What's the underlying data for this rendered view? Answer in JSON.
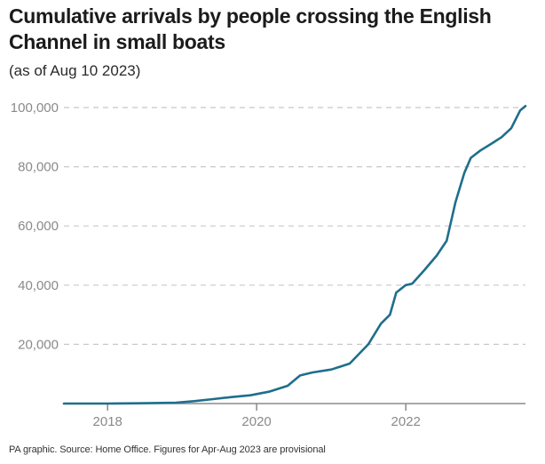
{
  "title": "Cumulative arrivals by people crossing the English Channel in small boats",
  "subtitle": "(as of Aug 10 2023)",
  "source": "PA graphic. Source: Home Office. Figures for Apr-Aug 2023 are provisional",
  "colors": {
    "line": "#1f6e8c",
    "grid": "#c8c8c8",
    "axis": "#8a8a8a"
  },
  "chart_data": {
    "type": "line",
    "title": "Cumulative arrivals by people crossing the English Channel in small boats",
    "subtitle": "(as of Aug 10 2023)",
    "xlabel": "",
    "ylabel": "",
    "ylim": [
      0,
      100000
    ],
    "xlim": [
      "2017-06-01",
      "2023-08-10"
    ],
    "grid": true,
    "grid_style": "dashed, horizontal",
    "x_ticks": [
      "2018",
      "2020",
      "2022"
    ],
    "y_ticks": [
      "20,000",
      "40,000",
      "60,000",
      "80,000",
      "100,000"
    ],
    "series": [
      {
        "points": [
          [
            "2017-06-01",
            0
          ],
          [
            "2018-01-01",
            0
          ],
          [
            "2018-06-01",
            100
          ],
          [
            "2018-12-01",
            300
          ],
          [
            "2019-03-01",
            800
          ],
          [
            "2019-06-01",
            1500
          ],
          [
            "2019-09-01",
            2200
          ],
          [
            "2019-12-01",
            2800
          ],
          [
            "2020-03-01",
            4000
          ],
          [
            "2020-06-01",
            6000
          ],
          [
            "2020-08-01",
            9500
          ],
          [
            "2020-10-01",
            10500
          ],
          [
            "2021-01-01",
            11500
          ],
          [
            "2021-04-01",
            13500
          ],
          [
            "2021-07-01",
            20000
          ],
          [
            "2021-09-01",
            27000
          ],
          [
            "2021-10-15",
            30000
          ],
          [
            "2021-11-15",
            37500
          ],
          [
            "2021-12-31",
            40000
          ],
          [
            "2022-02-01",
            40500
          ],
          [
            "2022-04-01",
            45000
          ],
          [
            "2022-06-01",
            50000
          ],
          [
            "2022-07-20",
            55000
          ],
          [
            "2022-09-01",
            68000
          ],
          [
            "2022-10-15",
            78000
          ],
          [
            "2022-11-15",
            83000
          ],
          [
            "2023-01-01",
            85500
          ],
          [
            "2023-03-01",
            88000
          ],
          [
            "2023-04-15",
            90000
          ],
          [
            "2023-06-01",
            93000
          ],
          [
            "2023-07-15",
            99000
          ],
          [
            "2023-08-10",
            100500
          ]
        ]
      }
    ]
  }
}
